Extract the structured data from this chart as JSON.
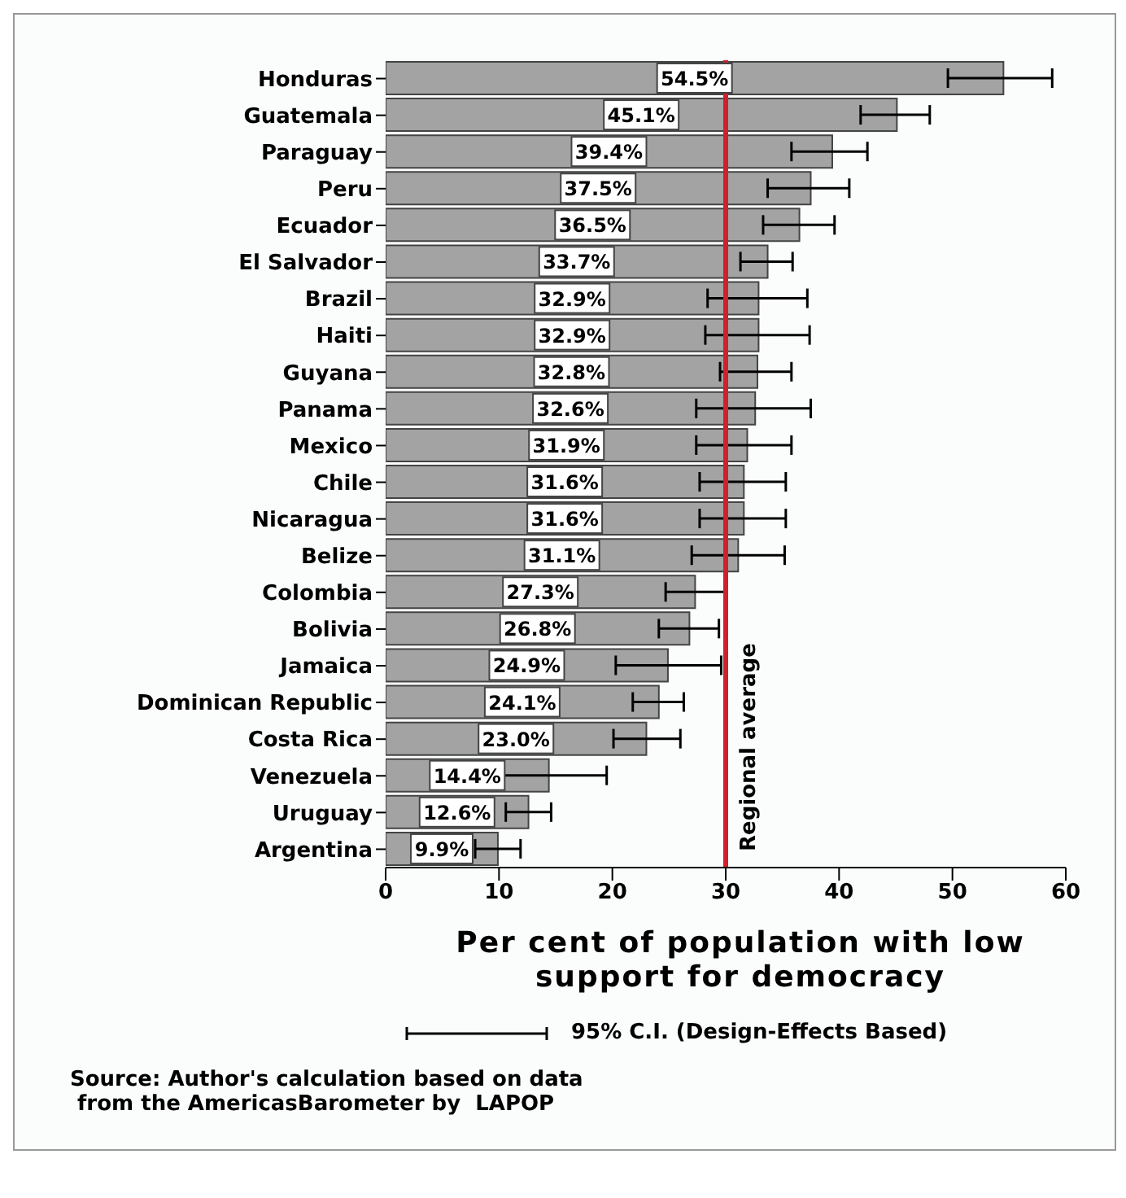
{
  "chart_data": {
    "type": "bar",
    "orientation": "horizontal",
    "categories": [
      "Honduras",
      "Guatemala",
      "Paraguay",
      "Peru",
      "Ecuador",
      "El Salvador",
      "Brazil",
      "Haiti",
      "Guyana",
      "Panama",
      "Mexico",
      "Chile",
      "Nicaragua",
      "Belize",
      "Colombia",
      "Bolivia",
      "Jamaica",
      "Dominican Republic",
      "Costa Rica",
      "Venezuela",
      "Uruguay",
      "Argentina"
    ],
    "values": [
      54.5,
      45.1,
      39.4,
      37.5,
      36.5,
      33.7,
      32.9,
      32.9,
      32.8,
      32.6,
      31.9,
      31.6,
      31.6,
      31.1,
      27.3,
      26.8,
      24.9,
      24.1,
      23.0,
      14.4,
      12.6,
      9.9
    ],
    "value_labels": [
      "54.5%",
      "45.1%",
      "39.4%",
      "37.5%",
      "36.5%",
      "33.7%",
      "32.9%",
      "32.9%",
      "32.8%",
      "32.6%",
      "31.9%",
      "31.6%",
      "31.6%",
      "31.1%",
      "27.3%",
      "26.8%",
      "24.9%",
      "24.1%",
      "23.0%",
      "14.4%",
      "12.6%",
      "9.9%"
    ],
    "errors": [
      [
        49.6,
        58.8
      ],
      [
        41.9,
        48.0
      ],
      [
        35.8,
        42.5
      ],
      [
        33.7,
        40.9
      ],
      [
        33.3,
        39.6
      ],
      [
        31.3,
        35.9
      ],
      [
        28.4,
        37.2
      ],
      [
        28.2,
        37.4
      ],
      [
        29.5,
        35.8
      ],
      [
        27.4,
        37.5
      ],
      [
        27.4,
        35.8
      ],
      [
        27.7,
        35.3
      ],
      [
        27.7,
        35.3
      ],
      [
        27.0,
        35.2
      ],
      [
        24.7,
        29.9
      ],
      [
        24.1,
        29.4
      ],
      [
        20.3,
        29.6
      ],
      [
        21.8,
        26.3
      ],
      [
        20.1,
        26.0
      ],
      [
        9.3,
        19.5
      ],
      [
        10.6,
        14.6
      ],
      [
        7.9,
        11.9
      ]
    ],
    "xlim": [
      0,
      60
    ],
    "xticks": [
      0,
      10,
      20,
      30,
      40,
      50,
      60
    ],
    "xlabel": "Per cent of population with low support for democracy",
    "ref_lines": [
      {
        "axis": "x",
        "value": 30,
        "label": "Regional average",
        "color": "#d0202a"
      }
    ],
    "annotations": [
      "95% C.I. (Design-Effects Based)",
      "Source: Author's calculation based on data\n from the AmericasBarometer by  LAPOP"
    ],
    "color": "#a3a3a3"
  }
}
